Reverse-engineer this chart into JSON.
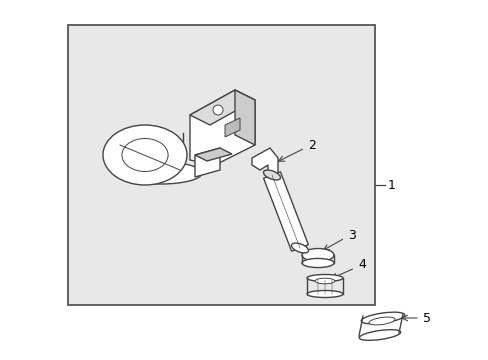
{
  "bg_color": "#ffffff",
  "box_bg": "#e8e8e8",
  "box_border": "#555555",
  "line_color": "#444444",
  "label_color": "#000000",
  "fig_width": 4.89,
  "fig_height": 3.6,
  "dpi": 100
}
